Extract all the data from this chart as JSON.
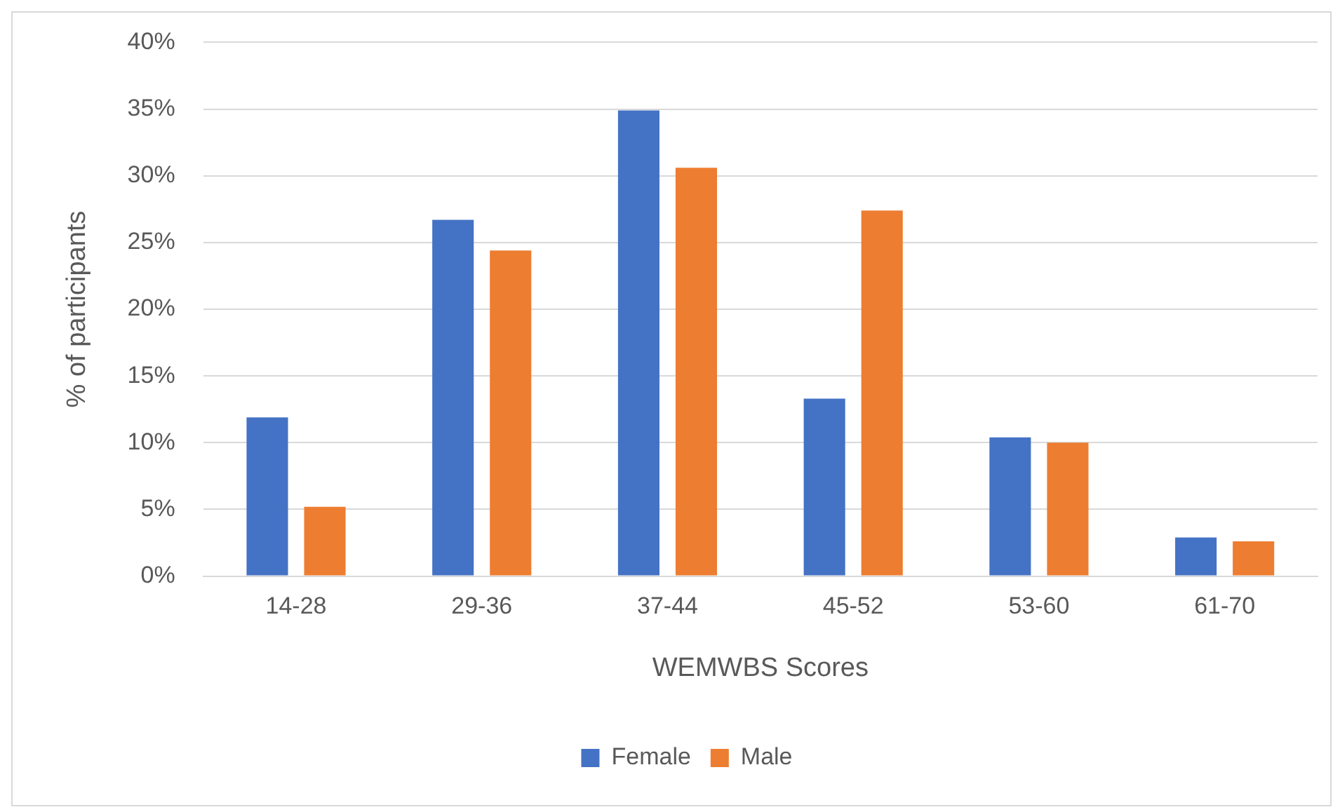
{
  "chart_data": {
    "type": "bar",
    "xlabel": "WEMWBS Scores",
    "ylabel": "% of participants",
    "categories": [
      "14-28",
      "29-36",
      "37-44",
      "45-52",
      "53-60",
      "61-70"
    ],
    "series": [
      {
        "name": "Female",
        "color": "#4472c4",
        "values": [
          11.9,
          26.7,
          34.9,
          13.3,
          10.4,
          2.9
        ]
      },
      {
        "name": "Male",
        "color": "#ed7d31",
        "values": [
          5.2,
          24.4,
          30.6,
          27.4,
          10.0,
          2.6
        ]
      }
    ],
    "ylim": [
      0,
      40
    ],
    "yticks": [
      {
        "value": 0,
        "label": "0%"
      },
      {
        "value": 5,
        "label": "5%"
      },
      {
        "value": 10,
        "label": "10%"
      },
      {
        "value": 15,
        "label": "15%"
      },
      {
        "value": 20,
        "label": "20%"
      },
      {
        "value": 25,
        "label": "25%"
      },
      {
        "value": 30,
        "label": "30%"
      },
      {
        "value": 35,
        "label": "35%"
      },
      {
        "value": 40,
        "label": "40%"
      }
    ],
    "grid": "y",
    "legend": "bottom"
  }
}
